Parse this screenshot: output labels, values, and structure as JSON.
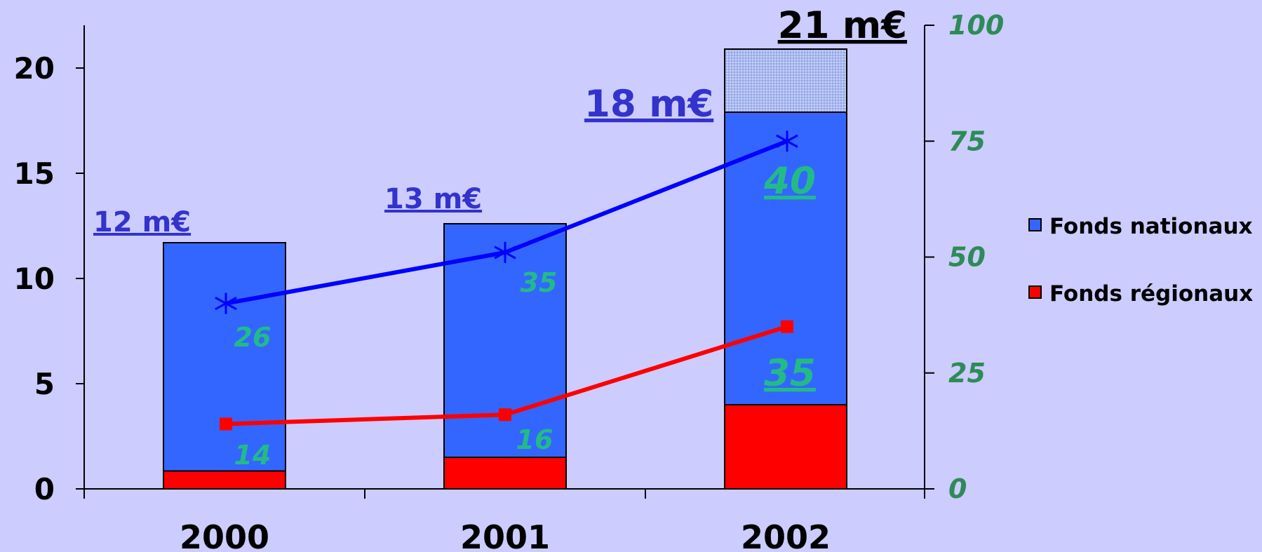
{
  "chart_data": {
    "type": "bar",
    "stacked": true,
    "categories": [
      "2000",
      "2001",
      "2002"
    ],
    "series": [
      {
        "name": "Fonds régionaux",
        "values": [
          0.85,
          1.5,
          4.0
        ],
        "color": "#ff0000"
      },
      {
        "name": "Fonds nationaux",
        "values": [
          10.85,
          11.1,
          13.9
        ],
        "color": "#3366ff"
      },
      {
        "values": [
          0,
          0,
          3.0
        ],
        "color": "#b8c4f0",
        "pattern": "dotted"
      }
    ],
    "totals": [
      {
        "label": "12 m€",
        "color": "#3333cc"
      },
      {
        "label": "13 m€",
        "color": "#3333cc"
      },
      {
        "label": "18 m€",
        "color": "#3333cc"
      },
      {
        "label": "21 m€",
        "color": "#000000"
      }
    ],
    "lines": [
      {
        "values": [
          40,
          51,
          75
        ],
        "color": "#0000ff",
        "marker": "asterisk",
        "axis": "right"
      },
      {
        "values": [
          14,
          16,
          35
        ],
        "color": "#ff0000",
        "marker": "square",
        "axis": "right"
      }
    ],
    "annotations": [
      {
        "category": "2000",
        "text": "26",
        "underline": false
      },
      {
        "category": "2000",
        "text": "14",
        "underline": false
      },
      {
        "category": "2001",
        "text": "35",
        "underline": false
      },
      {
        "category": "2001",
        "text": "16",
        "underline": false
      },
      {
        "category": "2002",
        "text": "40",
        "underline": true
      },
      {
        "category": "2002",
        "text": "35",
        "underline": true
      }
    ],
    "y_left": {
      "ticks": [
        "0",
        "5",
        "10",
        "15",
        "20"
      ],
      "range": [
        0,
        22
      ]
    },
    "y_right": {
      "ticks": [
        "0",
        "25",
        "50",
        "75",
        "100"
      ],
      "range": [
        0,
        100
      ],
      "color": "#2e8b57"
    },
    "legend": {
      "position": "right",
      "entries": [
        {
          "name": "Fonds nationaux",
          "color": "#3366ff"
        },
        {
          "name": "Fonds régionaux",
          "color": "#ff0000"
        }
      ]
    },
    "grid": false
  }
}
